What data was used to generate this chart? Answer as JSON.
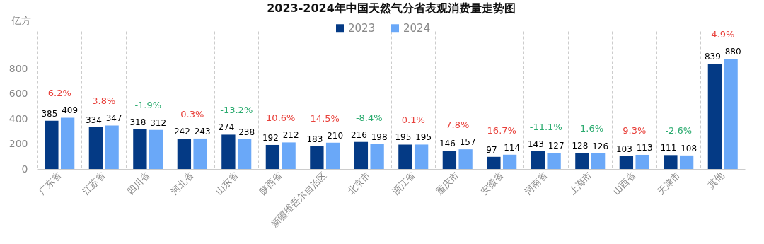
{
  "chart_data": {
    "type": "bar",
    "title": "2023-2024年中国天然气分省表观消费量走势图",
    "ylabel": "亿方",
    "categories": [
      "广东省",
      "江苏省",
      "四川省",
      "河北省",
      "山东省",
      "陕西省",
      "新疆维吾尔自治区",
      "北京市",
      "浙江省",
      "重庆市",
      "安徽省",
      "河南省",
      "上海市",
      "山西省",
      "天津市",
      "其他"
    ],
    "series": [
      {
        "name": "2023",
        "color": "#043a85",
        "values": [
          385,
          334,
          318,
          242,
          274,
          192,
          183,
          216,
          195,
          146,
          97,
          143,
          128,
          103,
          111,
          839
        ]
      },
      {
        "name": "2024",
        "color": "#6aa8f8",
        "values": [
          409,
          347,
          312,
          243,
          238,
          212,
          210,
          198,
          195,
          157,
          114,
          127,
          126,
          113,
          108,
          880
        ]
      }
    ],
    "ylim": [
      0,
      1100
    ],
    "yticks": [
      0,
      200,
      400,
      600,
      800
    ],
    "grid": "x",
    "legend": "top",
    "data_labels": true,
    "annotations": [
      "6.2%",
      "3.8%",
      "-1.9%",
      "0.3%",
      "-13.2%",
      "10.6%",
      "14.5%",
      "-8.4%",
      "0.1%",
      "7.8%",
      "16.7%",
      "-11.1%",
      "-1.6%",
      "9.3%",
      "-2.6%",
      "4.9%"
    ]
  }
}
